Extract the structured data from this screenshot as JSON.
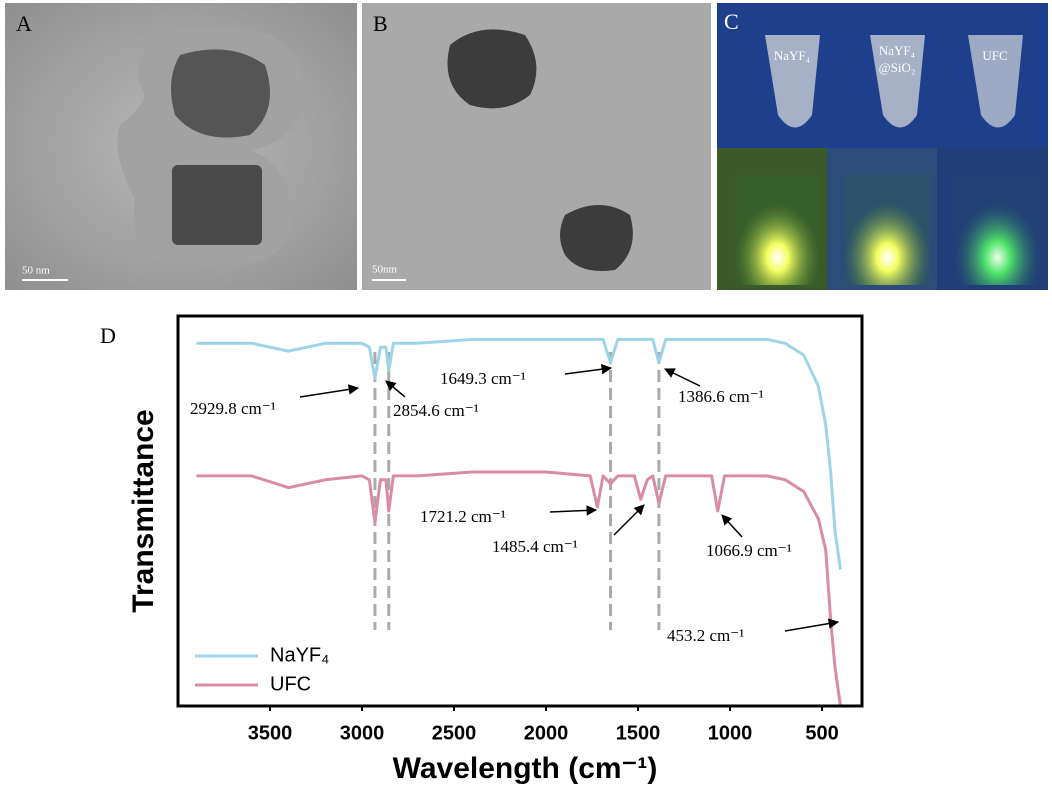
{
  "panels": {
    "a": {
      "label": "A",
      "scale_bar": "50 nm"
    },
    "b": {
      "label": "B",
      "scale_bar": "50nm"
    },
    "c": {
      "label": "C",
      "tubes": [
        "NaYF₄",
        "NaYF₄",
        "UFC"
      ],
      "tube_sub": "@SiO₂"
    },
    "d": {
      "label": "D"
    }
  },
  "chart_data": {
    "type": "line",
    "y_label": "Transmittance",
    "x_label": "Wavelength (cm⁻¹)",
    "x": [
      3900,
      3600,
      3400,
      3200,
      3000,
      2960,
      2929.8,
      2900,
      2870,
      2854.6,
      2830,
      2700,
      2400,
      2000,
      1760,
      1721.2,
      1690,
      1649.3,
      1610,
      1520,
      1485.4,
      1450,
      1420,
      1386.6,
      1350,
      1200,
      1100,
      1066.9,
      1030,
      900,
      800,
      700,
      600,
      520,
      480,
      453.2,
      430,
      400
    ],
    "series": [
      {
        "name": "NaYF₄",
        "color": "#9fd4e8",
        "values": [
          93,
          93,
          91,
          93,
          93,
          92,
          84,
          92,
          92,
          86,
          93,
          93,
          94,
          94,
          94,
          94,
          94,
          88,
          94,
          94,
          94,
          94,
          94,
          88,
          94,
          94,
          94,
          94,
          94,
          94,
          94,
          93,
          90,
          82,
          72,
          60,
          45,
          35
        ]
      },
      {
        "name": "UFC",
        "color": "#d98ca6",
        "values": [
          59,
          59,
          56,
          58,
          59,
          58,
          47,
          58,
          58,
          50,
          59,
          59,
          60,
          60,
          59,
          51,
          59,
          57,
          59,
          59,
          53,
          58,
          59,
          52,
          59,
          59,
          59,
          50,
          59,
          59,
          59,
          58,
          55,
          48,
          40,
          22,
          10,
          0
        ]
      }
    ],
    "xlim": [
      4000,
      283
    ],
    "ylim": [
      0,
      100
    ],
    "xticks": [
      3500,
      3000,
      2500,
      2000,
      1500,
      1000,
      500
    ],
    "marker_lines": [
      2929.8,
      2854.6,
      1649.3,
      1386.6
    ],
    "annotations": [
      "2929.8 cm⁻¹",
      "2854.6 cm⁻¹",
      "1649.3 cm⁻¹",
      "1386.6 cm⁻¹",
      "1721.2 cm⁻¹",
      "1485.4 cm⁻¹",
      "1066.9 cm⁻¹",
      "453.2 cm⁻¹"
    ],
    "legend": "lower left"
  }
}
